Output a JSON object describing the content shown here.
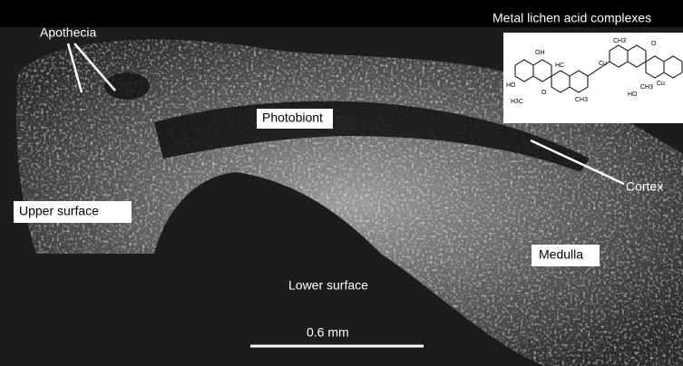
{
  "figure": {
    "labels": {
      "apothecia": "Apothecia",
      "photobiont": "Photobiont",
      "upper_surface": "Upper surface",
      "lower_surface": "Lower surface",
      "medulla": "Medulla",
      "cortex": "Cortex",
      "inset_title": "Metal lichen acid complexes"
    },
    "scale_bar": "0.6 mm",
    "structure": {
      "atoms": [
        "OH",
        "HO",
        "H3C",
        "HC",
        "Cu",
        "CH3",
        "CH3",
        "CH3",
        "HO",
        "Cu",
        "O",
        "O"
      ]
    }
  }
}
